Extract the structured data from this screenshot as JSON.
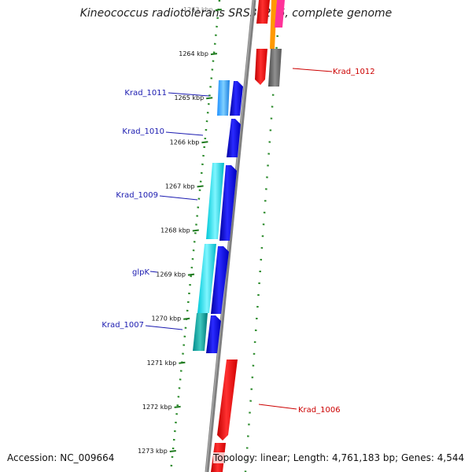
{
  "title": "Kineococcus radiotolerans SRS30216, complete genome",
  "accession": "Accession: NC_009664",
  "summary": "Topology: linear; Length: 4,761,183 bp; Genes: 4,544",
  "colors": {
    "backbone": "#808080",
    "ruler": "#1f7a1f",
    "dot_track": "#2a8a2a",
    "label_left": "#1a1ab0",
    "label_right": "#cc0000"
  },
  "ruler_ticks": [
    {
      "kbp": 1263,
      "label": "1263 kbp"
    },
    {
      "kbp": 1264,
      "label": "1264 kbp"
    },
    {
      "kbp": 1265,
      "label": "1265 kbp"
    },
    {
      "kbp": 1266,
      "label": "1266 kbp"
    },
    {
      "kbp": 1267,
      "label": "1267 kbp"
    },
    {
      "kbp": 1268,
      "label": "1268 kbp"
    },
    {
      "kbp": 1269,
      "label": "1269 kbp"
    },
    {
      "kbp": 1270,
      "label": "1270 kbp"
    },
    {
      "kbp": 1271,
      "label": "1271 kbp"
    },
    {
      "kbp": 1272,
      "label": "1272 kbp"
    },
    {
      "kbp": 1273,
      "label": "1273 kbp"
    }
  ],
  "gene_labels": [
    {
      "text": "Krad_1011",
      "side": "left"
    },
    {
      "text": "Krad_1010",
      "side": "left"
    },
    {
      "text": "Krad_1009",
      "side": "left"
    },
    {
      "text": "glpK",
      "side": "left"
    },
    {
      "text": "Krad_1007",
      "side": "left"
    },
    {
      "text": "Krad_1012",
      "side": "right"
    },
    {
      "text": "Krad_1006",
      "side": "right"
    }
  ]
}
